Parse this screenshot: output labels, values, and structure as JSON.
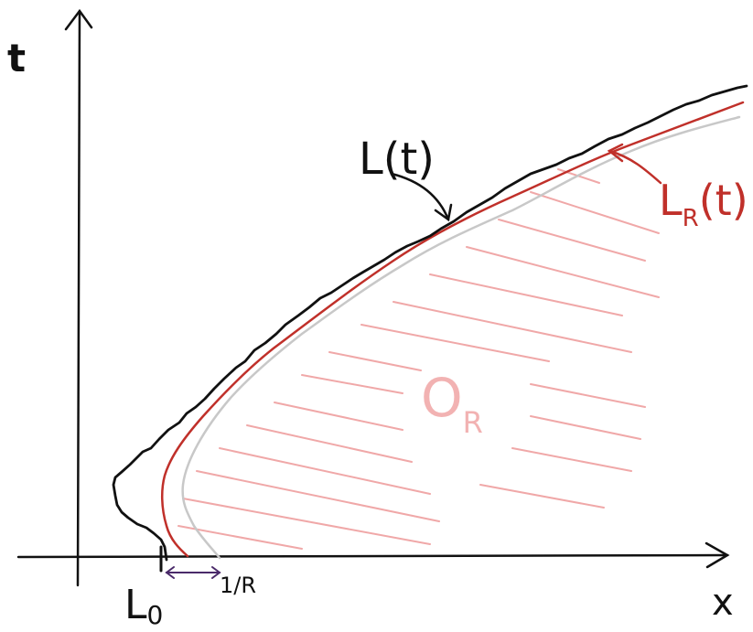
{
  "labels": {
    "t_axis": "t",
    "x_axis": "x",
    "L_t": "L(t)",
    "L_R_main": "L",
    "L_R_sub": "R",
    "L_R_args": "(t)",
    "O_R_main": "O",
    "O_R_sub": "R",
    "L0_main": "L",
    "L0_sub": "0",
    "one_over_R": "1/R"
  },
  "colors": {
    "ink": "#111111",
    "red_curve": "#c0302a",
    "grey_curve": "#c8c8c8",
    "hatch": "#f0a8a8",
    "region_label": "#f2b2b2",
    "bracket": "#4a2a6a"
  }
}
